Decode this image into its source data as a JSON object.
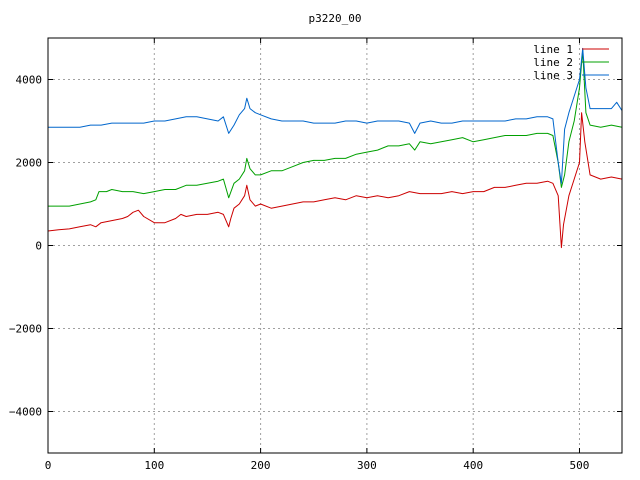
{
  "chart_data": {
    "type": "line",
    "title": "p3220_00",
    "xlabel": "",
    "ylabel": "",
    "xlim": [
      0,
      540
    ],
    "ylim": [
      -5000,
      5000
    ],
    "grid": true,
    "legend_position": "top-right",
    "x_ticks": [
      0,
      100,
      200,
      300,
      400,
      500
    ],
    "y_ticks": [
      -4000,
      -2000,
      0,
      2000,
      4000
    ],
    "x_tick_labels": [
      "0",
      "100",
      "200",
      "300",
      "400",
      "500"
    ],
    "y_tick_labels": [
      "−4000",
      "−2000",
      "0",
      "2000",
      "4000"
    ],
    "series": [
      {
        "name": "line 1",
        "color": "#cc0000",
        "points": [
          [
            0,
            350
          ],
          [
            10,
            380
          ],
          [
            20,
            400
          ],
          [
            30,
            450
          ],
          [
            40,
            500
          ],
          [
            45,
            450
          ],
          [
            50,
            550
          ],
          [
            60,
            600
          ],
          [
            70,
            650
          ],
          [
            75,
            700
          ],
          [
            80,
            800
          ],
          [
            85,
            850
          ],
          [
            90,
            700
          ],
          [
            100,
            550
          ],
          [
            110,
            550
          ],
          [
            120,
            650
          ],
          [
            125,
            750
          ],
          [
            130,
            700
          ],
          [
            140,
            750
          ],
          [
            150,
            750
          ],
          [
            160,
            800
          ],
          [
            165,
            750
          ],
          [
            170,
            450
          ],
          [
            172,
            650
          ],
          [
            175,
            900
          ],
          [
            180,
            1000
          ],
          [
            185,
            1200
          ],
          [
            187,
            1450
          ],
          [
            190,
            1100
          ],
          [
            195,
            950
          ],
          [
            200,
            1000
          ],
          [
            210,
            900
          ],
          [
            220,
            950
          ],
          [
            230,
            1000
          ],
          [
            240,
            1050
          ],
          [
            250,
            1050
          ],
          [
            260,
            1100
          ],
          [
            270,
            1150
          ],
          [
            280,
            1100
          ],
          [
            290,
            1200
          ],
          [
            300,
            1150
          ],
          [
            310,
            1200
          ],
          [
            320,
            1150
          ],
          [
            330,
            1200
          ],
          [
            340,
            1300
          ],
          [
            350,
            1250
          ],
          [
            360,
            1250
          ],
          [
            370,
            1250
          ],
          [
            380,
            1300
          ],
          [
            390,
            1250
          ],
          [
            400,
            1300
          ],
          [
            410,
            1300
          ],
          [
            420,
            1400
          ],
          [
            430,
            1400
          ],
          [
            440,
            1450
          ],
          [
            450,
            1500
          ],
          [
            460,
            1500
          ],
          [
            470,
            1550
          ],
          [
            475,
            1500
          ],
          [
            480,
            1200
          ],
          [
            483,
            -50
          ],
          [
            485,
            500
          ],
          [
            490,
            1200
          ],
          [
            495,
            1600
          ],
          [
            500,
            2000
          ],
          [
            502,
            3200
          ],
          [
            505,
            2500
          ],
          [
            510,
            1700
          ],
          [
            520,
            1600
          ],
          [
            530,
            1650
          ],
          [
            540,
            1600
          ]
        ]
      },
      {
        "name": "line 2",
        "color": "#00a000",
        "points": [
          [
            0,
            950
          ],
          [
            10,
            950
          ],
          [
            20,
            950
          ],
          [
            30,
            1000
          ],
          [
            40,
            1050
          ],
          [
            45,
            1100
          ],
          [
            48,
            1300
          ],
          [
            55,
            1300
          ],
          [
            60,
            1350
          ],
          [
            70,
            1300
          ],
          [
            80,
            1300
          ],
          [
            90,
            1250
          ],
          [
            100,
            1300
          ],
          [
            110,
            1350
          ],
          [
            120,
            1350
          ],
          [
            130,
            1450
          ],
          [
            140,
            1450
          ],
          [
            150,
            1500
          ],
          [
            160,
            1550
          ],
          [
            165,
            1600
          ],
          [
            170,
            1150
          ],
          [
            175,
            1500
          ],
          [
            180,
            1600
          ],
          [
            185,
            1800
          ],
          [
            187,
            2100
          ],
          [
            190,
            1850
          ],
          [
            195,
            1700
          ],
          [
            200,
            1700
          ],
          [
            210,
            1800
          ],
          [
            220,
            1800
          ],
          [
            230,
            1900
          ],
          [
            240,
            2000
          ],
          [
            250,
            2050
          ],
          [
            260,
            2050
          ],
          [
            270,
            2100
          ],
          [
            280,
            2100
          ],
          [
            290,
            2200
          ],
          [
            300,
            2250
          ],
          [
            310,
            2300
          ],
          [
            320,
            2400
          ],
          [
            330,
            2400
          ],
          [
            340,
            2450
          ],
          [
            345,
            2300
          ],
          [
            350,
            2500
          ],
          [
            360,
            2450
          ],
          [
            370,
            2500
          ],
          [
            380,
            2550
          ],
          [
            390,
            2600
          ],
          [
            400,
            2500
          ],
          [
            410,
            2550
          ],
          [
            420,
            2600
          ],
          [
            430,
            2650
          ],
          [
            440,
            2650
          ],
          [
            450,
            2650
          ],
          [
            460,
            2700
          ],
          [
            470,
            2700
          ],
          [
            475,
            2650
          ],
          [
            480,
            2000
          ],
          [
            483,
            1400
          ],
          [
            486,
            1700
          ],
          [
            490,
            2500
          ],
          [
            495,
            3000
          ],
          [
            500,
            3800
          ],
          [
            503,
            4700
          ],
          [
            506,
            3200
          ],
          [
            510,
            2900
          ],
          [
            520,
            2850
          ],
          [
            530,
            2900
          ],
          [
            540,
            2850
          ]
        ]
      },
      {
        "name": "line 3",
        "color": "#0066cc",
        "points": [
          [
            0,
            2850
          ],
          [
            10,
            2850
          ],
          [
            20,
            2850
          ],
          [
            30,
            2850
          ],
          [
            40,
            2900
          ],
          [
            50,
            2900
          ],
          [
            60,
            2950
          ],
          [
            70,
            2950
          ],
          [
            80,
            2950
          ],
          [
            90,
            2950
          ],
          [
            100,
            3000
          ],
          [
            110,
            3000
          ],
          [
            120,
            3050
          ],
          [
            130,
            3100
          ],
          [
            140,
            3100
          ],
          [
            150,
            3050
          ],
          [
            160,
            3000
          ],
          [
            165,
            3100
          ],
          [
            170,
            2700
          ],
          [
            175,
            2900
          ],
          [
            180,
            3150
          ],
          [
            185,
            3300
          ],
          [
            187,
            3550
          ],
          [
            190,
            3300
          ],
          [
            195,
            3200
          ],
          [
            200,
            3150
          ],
          [
            210,
            3050
          ],
          [
            220,
            3000
          ],
          [
            230,
            3000
          ],
          [
            240,
            3000
          ],
          [
            250,
            2950
          ],
          [
            260,
            2950
          ],
          [
            270,
            2950
          ],
          [
            280,
            3000
          ],
          [
            290,
            3000
          ],
          [
            300,
            2950
          ],
          [
            310,
            3000
          ],
          [
            320,
            3000
          ],
          [
            330,
            3000
          ],
          [
            340,
            2950
          ],
          [
            345,
            2700
          ],
          [
            350,
            2950
          ],
          [
            360,
            3000
          ],
          [
            370,
            2950
          ],
          [
            380,
            2950
          ],
          [
            390,
            3000
          ],
          [
            400,
            3000
          ],
          [
            410,
            3000
          ],
          [
            420,
            3000
          ],
          [
            430,
            3000
          ],
          [
            440,
            3050
          ],
          [
            450,
            3050
          ],
          [
            460,
            3100
          ],
          [
            470,
            3100
          ],
          [
            475,
            3050
          ],
          [
            480,
            2000
          ],
          [
            483,
            1500
          ],
          [
            486,
            2800
          ],
          [
            490,
            3200
          ],
          [
            495,
            3600
          ],
          [
            500,
            4000
          ],
          [
            503,
            4750
          ],
          [
            506,
            3800
          ],
          [
            510,
            3300
          ],
          [
            520,
            3300
          ],
          [
            530,
            3300
          ],
          [
            535,
            3450
          ],
          [
            540,
            3250
          ]
        ]
      }
    ]
  }
}
